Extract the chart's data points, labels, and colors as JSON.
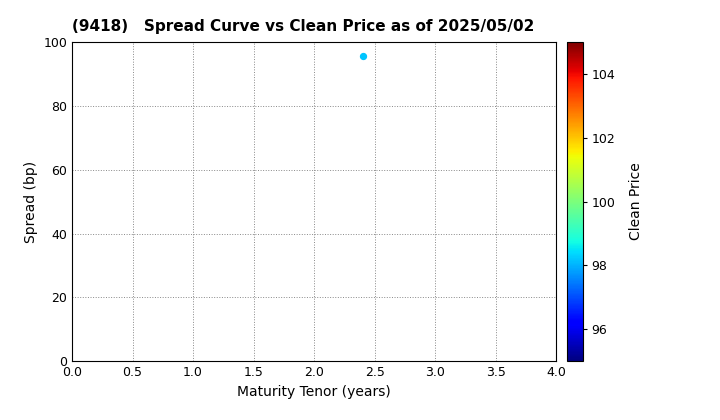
{
  "title": "(9418)   Spread Curve vs Clean Price as of 2025/05/02",
  "xlabel": "Maturity Tenor (years)",
  "ylabel": "Spread (bp)",
  "colorbar_label": "Clean Price",
  "xlim": [
    0.0,
    4.0
  ],
  "ylim": [
    0,
    100
  ],
  "xticks": [
    0.0,
    0.5,
    1.0,
    1.5,
    2.0,
    2.5,
    3.0,
    3.5,
    4.0
  ],
  "yticks": [
    0,
    20,
    40,
    60,
    80,
    100
  ],
  "colorbar_ticks": [
    96,
    98,
    100,
    102,
    104
  ],
  "colorbar_min": 95,
  "colorbar_max": 105,
  "scatter_x": [
    2.4
  ],
  "scatter_y": [
    95.5
  ],
  "scatter_color": [
    98.2
  ],
  "scatter_size": 18,
  "background_color": "#ffffff",
  "grid_color": "#888888",
  "grid_style": "dotted"
}
